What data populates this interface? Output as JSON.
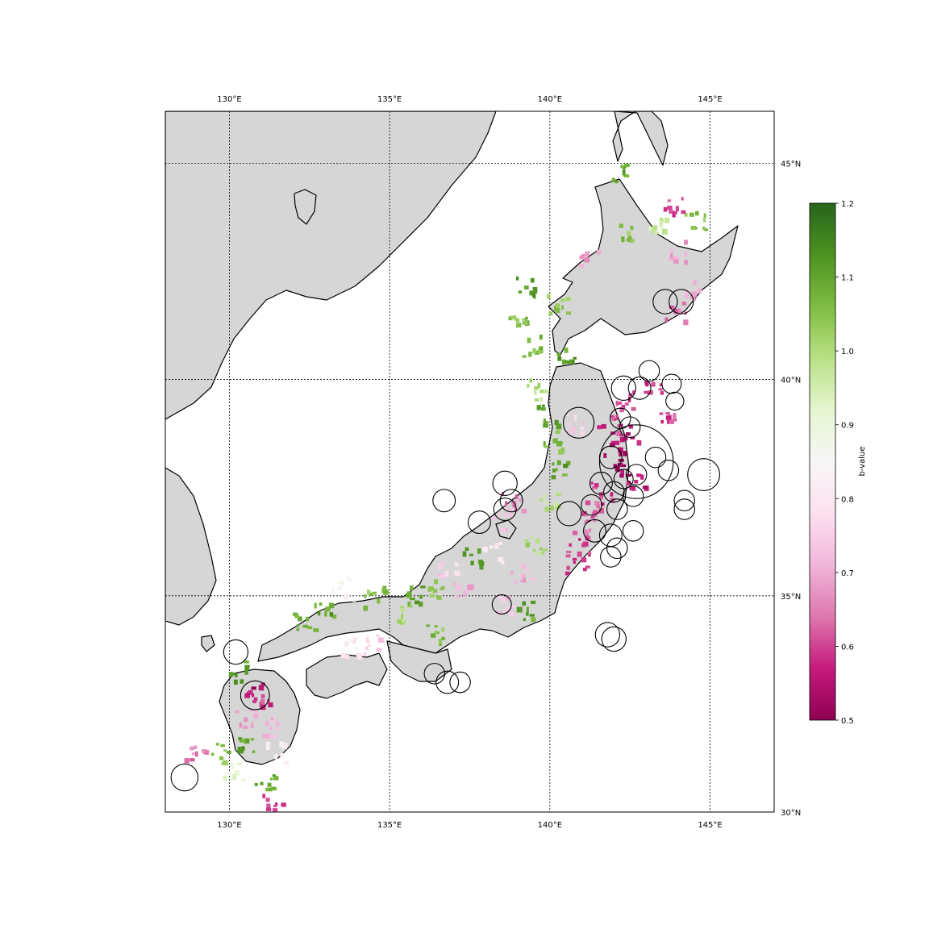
{
  "map": {
    "lon_range": [
      128,
      147
    ],
    "lat_range": [
      30,
      46.2
    ],
    "land_color": "#d6d6d6",
    "coast_color": "#000000",
    "grid_style": "dotted",
    "meridians": [
      {
        "lon": 130,
        "label": "130°E"
      },
      {
        "lon": 135,
        "label": "135°E"
      },
      {
        "lon": 140,
        "label": "140°E"
      },
      {
        "lon": 145,
        "label": "145°E"
      }
    ],
    "parallels": [
      {
        "lat": 30,
        "label": "30°N"
      },
      {
        "lat": 35,
        "label": "35°N"
      },
      {
        "lat": 40,
        "label": "40°N"
      },
      {
        "lat": 45,
        "label": "45°N"
      }
    ]
  },
  "colorbar": {
    "label": "b-value",
    "min": 0.5,
    "max": 1.2,
    "cmap": "PiYG",
    "ticks": [
      "0.5",
      "0.6",
      "0.7",
      "0.8",
      "0.9",
      "1.0",
      "1.1",
      "1.2"
    ],
    "stops": [
      "#8e0152",
      "#c51b7d",
      "#de77ae",
      "#f1b6da",
      "#fde0ef",
      "#f7f7f7",
      "#e6f5d0",
      "#b8e186",
      "#7fbc41",
      "#4d9221",
      "#276419"
    ]
  },
  "chart_data": {
    "type": "scatter",
    "description_key": "b-value",
    "cells": [
      {
        "lon": 142.0,
        "lat": 38.5,
        "b": 0.55
      },
      {
        "lon": 142.2,
        "lat": 38.0,
        "b": 0.52
      },
      {
        "lon": 141.8,
        "lat": 39.0,
        "b": 0.6
      },
      {
        "lon": 142.3,
        "lat": 39.6,
        "b": 0.58
      },
      {
        "lon": 142.5,
        "lat": 38.8,
        "b": 0.55
      },
      {
        "lon": 141.6,
        "lat": 37.4,
        "b": 0.6
      },
      {
        "lon": 141.2,
        "lat": 37.0,
        "b": 0.62
      },
      {
        "lon": 141.0,
        "lat": 36.6,
        "b": 0.63
      },
      {
        "lon": 140.9,
        "lat": 36.2,
        "b": 0.58
      },
      {
        "lon": 140.8,
        "lat": 35.8,
        "b": 0.6
      },
      {
        "lon": 142.7,
        "lat": 37.7,
        "b": 0.56
      },
      {
        "lon": 143.2,
        "lat": 39.8,
        "b": 0.6
      },
      {
        "lon": 143.6,
        "lat": 39.3,
        "b": 0.6
      },
      {
        "lon": 143.9,
        "lat": 41.6,
        "b": 0.65
      },
      {
        "lon": 144.3,
        "lat": 42.1,
        "b": 0.72
      },
      {
        "lon": 140.8,
        "lat": 39.0,
        "b": 0.75
      },
      {
        "lon": 140.1,
        "lat": 38.6,
        "b": 1.05
      },
      {
        "lon": 140.3,
        "lat": 37.9,
        "b": 1.1
      },
      {
        "lon": 139.9,
        "lat": 37.2,
        "b": 1.0
      },
      {
        "lon": 138.8,
        "lat": 37.2,
        "b": 0.65
      },
      {
        "lon": 138.5,
        "lat": 36.8,
        "b": 0.72
      },
      {
        "lon": 139.5,
        "lat": 36.2,
        "b": 1.0
      },
      {
        "lon": 138.2,
        "lat": 36.0,
        "b": 0.8
      },
      {
        "lon": 137.5,
        "lat": 35.9,
        "b": 1.1
      },
      {
        "lon": 136.8,
        "lat": 35.6,
        "b": 0.75
      },
      {
        "lon": 136.5,
        "lat": 35.2,
        "b": 1.05
      },
      {
        "lon": 135.7,
        "lat": 35.1,
        "b": 1.1
      },
      {
        "lon": 135.3,
        "lat": 34.6,
        "b": 1.0
      },
      {
        "lon": 134.5,
        "lat": 35.0,
        "b": 1.05
      },
      {
        "lon": 133.5,
        "lat": 35.2,
        "b": 0.85
      },
      {
        "lon": 132.9,
        "lat": 34.8,
        "b": 1.1
      },
      {
        "lon": 132.3,
        "lat": 34.4,
        "b": 1.1
      },
      {
        "lon": 133.7,
        "lat": 33.8,
        "b": 0.8
      },
      {
        "lon": 134.4,
        "lat": 33.9,
        "b": 0.75
      },
      {
        "lon": 136.4,
        "lat": 34.2,
        "b": 1.05
      },
      {
        "lon": 137.2,
        "lat": 35.2,
        "b": 0.7
      },
      {
        "lon": 138.6,
        "lat": 34.8,
        "b": 0.72
      },
      {
        "lon": 139.1,
        "lat": 35.6,
        "b": 0.7
      },
      {
        "lon": 139.2,
        "lat": 34.7,
        "b": 1.1
      },
      {
        "lon": 130.8,
        "lat": 32.8,
        "b": 0.55
      },
      {
        "lon": 131.0,
        "lat": 32.5,
        "b": 0.6
      },
      {
        "lon": 130.3,
        "lat": 33.3,
        "b": 1.1
      },
      {
        "lon": 130.5,
        "lat": 32.2,
        "b": 0.7
      },
      {
        "lon": 131.3,
        "lat": 32.0,
        "b": 0.72
      },
      {
        "lon": 130.5,
        "lat": 31.5,
        "b": 1.1
      },
      {
        "lon": 131.4,
        "lat": 31.4,
        "b": 0.85
      },
      {
        "lon": 130.1,
        "lat": 31.0,
        "b": 0.9
      },
      {
        "lon": 129.6,
        "lat": 31.4,
        "b": 1.05
      },
      {
        "lon": 131.1,
        "lat": 30.7,
        "b": 1.1
      },
      {
        "lon": 131.3,
        "lat": 30.2,
        "b": 0.6
      },
      {
        "lon": 128.9,
        "lat": 31.3,
        "b": 0.65
      },
      {
        "lon": 139.2,
        "lat": 42.2,
        "b": 1.1
      },
      {
        "lon": 139.0,
        "lat": 41.5,
        "b": 1.05
      },
      {
        "lon": 139.4,
        "lat": 40.8,
        "b": 1.05
      },
      {
        "lon": 139.6,
        "lat": 39.8,
        "b": 1.0
      },
      {
        "lon": 140.5,
        "lat": 40.5,
        "b": 1.1
      },
      {
        "lon": 141.2,
        "lat": 42.8,
        "b": 0.7
      },
      {
        "lon": 142.4,
        "lat": 43.4,
        "b": 1.05
      },
      {
        "lon": 143.3,
        "lat": 43.5,
        "b": 0.95
      },
      {
        "lon": 144.0,
        "lat": 43.0,
        "b": 0.7
      },
      {
        "lon": 144.5,
        "lat": 43.7,
        "b": 1.05
      },
      {
        "lon": 143.8,
        "lat": 44.0,
        "b": 0.6
      },
      {
        "lon": 142.1,
        "lat": 44.8,
        "b": 1.1
      },
      {
        "lon": 140.2,
        "lat": 41.8,
        "b": 1.05
      },
      {
        "lon": 139.9,
        "lat": 39.2,
        "b": 1.1
      }
    ],
    "circles": [
      {
        "lon": 142.7,
        "lat": 38.1,
        "r_deg": 1.15
      },
      {
        "lon": 141.9,
        "lat": 38.2,
        "r_deg": 0.35
      },
      {
        "lon": 141.6,
        "lat": 37.6,
        "r_deg": 0.35
      },
      {
        "lon": 142.0,
        "lat": 37.4,
        "r_deg": 0.32
      },
      {
        "lon": 142.3,
        "lat": 37.7,
        "r_deg": 0.3
      },
      {
        "lon": 142.1,
        "lat": 37.0,
        "r_deg": 0.32
      },
      {
        "lon": 142.6,
        "lat": 37.3,
        "r_deg": 0.32
      },
      {
        "lon": 141.3,
        "lat": 37.1,
        "r_deg": 0.32
      },
      {
        "lon": 142.7,
        "lat": 37.8,
        "r_deg": 0.32
      },
      {
        "lon": 143.3,
        "lat": 38.2,
        "r_deg": 0.32
      },
      {
        "lon": 143.7,
        "lat": 37.9,
        "r_deg": 0.32
      },
      {
        "lon": 144.8,
        "lat": 37.8,
        "r_deg": 0.5
      },
      {
        "lon": 144.2,
        "lat": 37.2,
        "r_deg": 0.32
      },
      {
        "lon": 144.2,
        "lat": 37.0,
        "r_deg": 0.32
      },
      {
        "lon": 142.2,
        "lat": 39.1,
        "r_deg": 0.32
      },
      {
        "lon": 142.5,
        "lat": 38.9,
        "r_deg": 0.32
      },
      {
        "lon": 142.3,
        "lat": 39.8,
        "r_deg": 0.38
      },
      {
        "lon": 142.8,
        "lat": 39.8,
        "r_deg": 0.35
      },
      {
        "lon": 143.1,
        "lat": 40.2,
        "r_deg": 0.32
      },
      {
        "lon": 143.8,
        "lat": 39.9,
        "r_deg": 0.3
      },
      {
        "lon": 143.9,
        "lat": 39.5,
        "r_deg": 0.28
      },
      {
        "lon": 144.1,
        "lat": 41.8,
        "r_deg": 0.38
      },
      {
        "lon": 143.6,
        "lat": 41.8,
        "r_deg": 0.38
      },
      {
        "lon": 141.4,
        "lat": 36.5,
        "r_deg": 0.35
      },
      {
        "lon": 141.9,
        "lat": 36.4,
        "r_deg": 0.35
      },
      {
        "lon": 142.1,
        "lat": 36.1,
        "r_deg": 0.32
      },
      {
        "lon": 141.9,
        "lat": 35.9,
        "r_deg": 0.32
      },
      {
        "lon": 142.6,
        "lat": 36.5,
        "r_deg": 0.32
      },
      {
        "lon": 140.9,
        "lat": 39.0,
        "r_deg": 0.48
      },
      {
        "lon": 140.6,
        "lat": 36.9,
        "r_deg": 0.38
      },
      {
        "lon": 138.6,
        "lat": 37.6,
        "r_deg": 0.38
      },
      {
        "lon": 138.8,
        "lat": 37.2,
        "r_deg": 0.35
      },
      {
        "lon": 138.6,
        "lat": 37.0,
        "r_deg": 0.35
      },
      {
        "lon": 137.8,
        "lat": 36.7,
        "r_deg": 0.35
      },
      {
        "lon": 136.7,
        "lat": 37.2,
        "r_deg": 0.35
      },
      {
        "lon": 138.5,
        "lat": 34.8,
        "r_deg": 0.3
      },
      {
        "lon": 141.8,
        "lat": 34.1,
        "r_deg": 0.38
      },
      {
        "lon": 142.0,
        "lat": 34.0,
        "r_deg": 0.38
      },
      {
        "lon": 136.4,
        "lat": 33.2,
        "r_deg": 0.32
      },
      {
        "lon": 136.8,
        "lat": 33.0,
        "r_deg": 0.35
      },
      {
        "lon": 137.2,
        "lat": 33.0,
        "r_deg": 0.32
      },
      {
        "lon": 130.2,
        "lat": 33.7,
        "r_deg": 0.38
      },
      {
        "lon": 130.8,
        "lat": 32.7,
        "r_deg": 0.45
      },
      {
        "lon": 128.6,
        "lat": 30.8,
        "r_deg": 0.42
      }
    ]
  }
}
